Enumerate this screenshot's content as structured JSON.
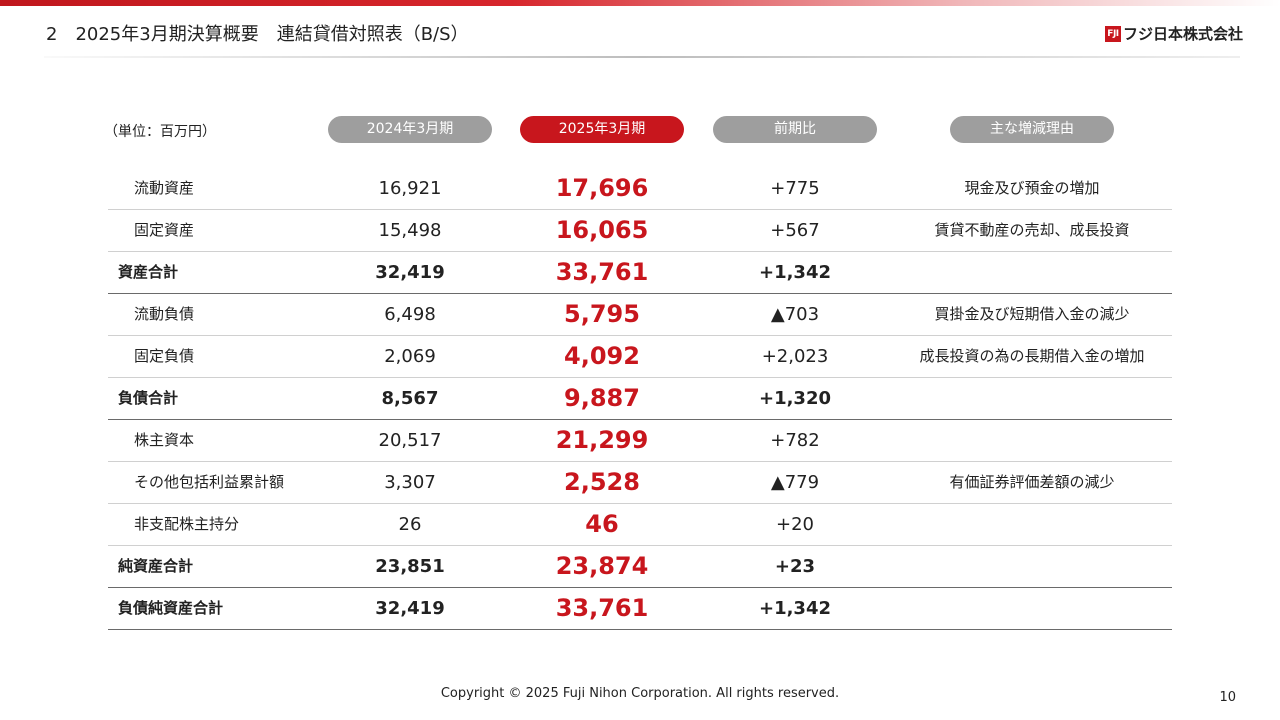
{
  "header": {
    "section_no": "2",
    "title": "2025年3月期決算概要　連結貸借対照表（B/S）",
    "company_logo_mark": "FJI",
    "company_name": "フジ日本株式会社"
  },
  "table": {
    "unit": "（単位：百万円）",
    "columns": [
      "2024年3月期",
      "2025年3月期",
      "前期比",
      "主な増減理由"
    ],
    "rows": [
      {
        "label": "流動資産",
        "prev": "16,921",
        "cur": "17,696",
        "diff": "+775",
        "reason": "現金及び預金の増加",
        "total": false
      },
      {
        "label": "固定資産",
        "prev": "15,498",
        "cur": "16,065",
        "diff": "+567",
        "reason": "賃貸不動産の売却、成長投資",
        "total": false
      },
      {
        "label": "資産合計",
        "prev": "32,419",
        "cur": "33,761",
        "diff": "+1,342",
        "reason": "",
        "total": true
      },
      {
        "label": "流動負債",
        "prev": "6,498",
        "cur": "5,795",
        "diff": "▲703",
        "reason": "買掛金及び短期借入金の減少",
        "total": false
      },
      {
        "label": "固定負債",
        "prev": "2,069",
        "cur": "4,092",
        "diff": "+2,023",
        "reason": "成長投資の為の長期借入金の増加",
        "total": false
      },
      {
        "label": "負債合計",
        "prev": "8,567",
        "cur": "9,887",
        "diff": "+1,320",
        "reason": "",
        "total": true
      },
      {
        "label": "株主資本",
        "prev": "20,517",
        "cur": "21,299",
        "diff": "+782",
        "reason": "",
        "total": false
      },
      {
        "label": "その他包括利益累計額",
        "prev": "3,307",
        "cur": "2,528",
        "diff": "▲779",
        "reason": "有価証券評価差額の減少",
        "total": false
      },
      {
        "label": "非支配株主持分",
        "prev": "26",
        "cur": "46",
        "diff": "+20",
        "reason": "",
        "total": false
      },
      {
        "label": "純資産合計",
        "prev": "23,851",
        "cur": "23,874",
        "diff": "+23",
        "reason": "",
        "total": true
      },
      {
        "label": "負債純資産合計",
        "prev": "32,419",
        "cur": "33,761",
        "diff": "+1,342",
        "reason": "",
        "total": true
      }
    ]
  },
  "footer": {
    "copyright": "Copyright © 2025 Fuji Nihon Corporation.  All rights reserved.",
    "page": "10"
  },
  "colors": {
    "accent_red": "#c8161d",
    "pill_gray": "#9e9e9e",
    "text": "#222222"
  }
}
